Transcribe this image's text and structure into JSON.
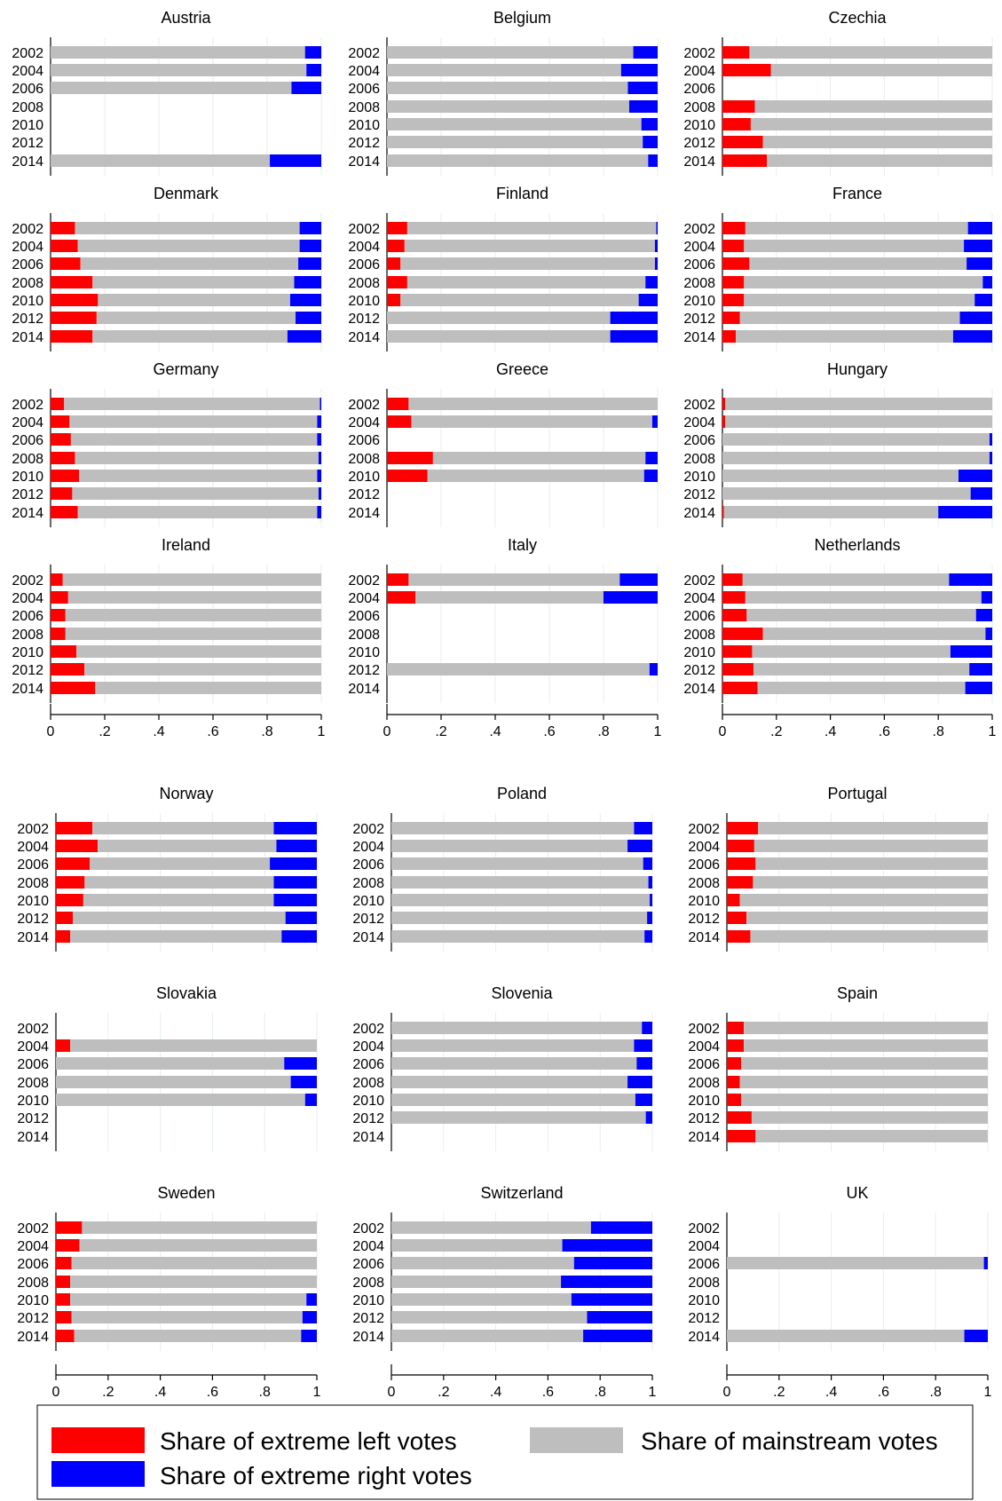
{
  "colors": {
    "left": "#ff0000",
    "mainstream": "#bebebe",
    "right": "#0000ff",
    "grid": "#e6eef2",
    "axis": "#000000"
  },
  "legend": {
    "left_label": "Share of extreme left votes",
    "mainstream_label": "Share of mainstream votes",
    "right_label": "Share of extreme right votes"
  },
  "chart_data": {
    "type": "bar",
    "orientation": "horizontal-stacked",
    "categories": [
      "2002",
      "2004",
      "2006",
      "2008",
      "2010",
      "2012",
      "2014"
    ],
    "x_ticks": [
      "0",
      ".2",
      ".4",
      ".6",
      ".8",
      "1"
    ],
    "xlim": [
      0,
      1
    ],
    "grid": true,
    "legend_position": "bottom",
    "series_names": [
      "Share of extreme left votes",
      "Share of mainstream votes",
      "Share of extreme right votes"
    ],
    "panels": [
      {
        "title": "Austria",
        "left": [
          0,
          0,
          0,
          null,
          null,
          null,
          0
        ],
        "right": [
          0.06,
          0.055,
          0.11,
          null,
          null,
          null,
          0.19
        ]
      },
      {
        "title": "Belgium",
        "left": [
          0,
          0,
          0,
          0,
          0,
          0,
          0
        ],
        "right": [
          0.09,
          0.135,
          0.11,
          0.105,
          0.06,
          0.055,
          0.035
        ]
      },
      {
        "title": "Czechia",
        "left": [
          0.1,
          0.18,
          null,
          0.12,
          0.105,
          0.15,
          0.165
        ],
        "right": [
          0,
          0,
          null,
          0,
          0,
          0,
          0
        ]
      },
      {
        "title": "Denmark",
        "left": [
          0.09,
          0.1,
          0.11,
          0.155,
          0.175,
          0.17,
          0.155
        ],
        "right": [
          0.08,
          0.08,
          0.085,
          0.1,
          0.115,
          0.095,
          0.125
        ]
      },
      {
        "title": "Finland",
        "left": [
          0.075,
          0.065,
          0.05,
          0.075,
          0.05,
          0,
          0
        ],
        "right": [
          0.005,
          0.01,
          0.01,
          0.045,
          0.07,
          0.175,
          0.175
        ]
      },
      {
        "title": "France",
        "left": [
          0.085,
          0.08,
          0.1,
          0.08,
          0.08,
          0.065,
          0.05
        ],
        "right": [
          0.09,
          0.105,
          0.095,
          0.035,
          0.065,
          0.12,
          0.145
        ]
      },
      {
        "title": "Germany",
        "left": [
          0.05,
          0.07,
          0.075,
          0.09,
          0.105,
          0.08,
          0.1
        ],
        "right": [
          0.005,
          0.015,
          0.015,
          0.01,
          0.015,
          0.01,
          0.015
        ]
      },
      {
        "title": "Greece",
        "left": [
          0.08,
          0.09,
          null,
          0.17,
          0.15,
          null,
          null
        ],
        "right": [
          0,
          0.02,
          null,
          0.045,
          0.05,
          null,
          null
        ]
      },
      {
        "title": "Hungary",
        "left": [
          0.01,
          0.01,
          0,
          0,
          0,
          0,
          0.005
        ],
        "right": [
          0,
          0,
          0.01,
          0.01,
          0.125,
          0.08,
          0.2
        ]
      },
      {
        "title": "Ireland",
        "left": [
          0.045,
          0.065,
          0.055,
          0.055,
          0.095,
          0.125,
          0.165
        ],
        "right": [
          0,
          0,
          0,
          0,
          0,
          0,
          0
        ]
      },
      {
        "title": "Italy",
        "left": [
          0.08,
          0.105,
          null,
          null,
          null,
          0,
          null
        ],
        "right": [
          0.14,
          0.2,
          null,
          null,
          null,
          0.03,
          null
        ]
      },
      {
        "title": "Netherlands",
        "left": [
          0.075,
          0.085,
          0.09,
          0.15,
          0.11,
          0.115,
          0.13
        ],
        "right": [
          0.16,
          0.04,
          0.06,
          0.025,
          0.155,
          0.085,
          0.1
        ]
      },
      {
        "title": "Norway",
        "left": [
          0.14,
          0.16,
          0.13,
          0.11,
          0.105,
          0.065,
          0.055
        ],
        "right": [
          0.165,
          0.155,
          0.18,
          0.165,
          0.165,
          0.12,
          0.135
        ]
      },
      {
        "title": "Poland",
        "left": [
          0,
          0,
          0,
          0,
          0,
          0,
          0
        ],
        "right": [
          0.07,
          0.095,
          0.035,
          0.015,
          0.01,
          0.02,
          0.03
        ]
      },
      {
        "title": "Portugal",
        "left": [
          0.12,
          0.105,
          0.11,
          0.1,
          0.05,
          0.075,
          0.09
        ],
        "right": [
          0,
          0,
          0,
          0,
          0,
          0,
          0
        ]
      },
      {
        "title": "Slovakia",
        "left": [
          null,
          0.055,
          0,
          0,
          0,
          null,
          null
        ],
        "right": [
          null,
          0,
          0.125,
          0.1,
          0.045,
          null,
          null
        ]
      },
      {
        "title": "Slovenia",
        "left": [
          0,
          0,
          0,
          0,
          0,
          0,
          null
        ],
        "right": [
          0.04,
          0.07,
          0.06,
          0.095,
          0.065,
          0.025,
          null
        ]
      },
      {
        "title": "Spain",
        "left": [
          0.065,
          0.065,
          0.055,
          0.05,
          0.055,
          0.095,
          0.11
        ],
        "right": [
          0,
          0,
          0,
          0,
          0,
          0,
          0
        ]
      },
      {
        "title": "Sweden",
        "left": [
          0.1,
          0.09,
          0.06,
          0.055,
          0.055,
          0.06,
          0.07
        ],
        "right": [
          0,
          0,
          0,
          0,
          0.04,
          0.055,
          0.06
        ]
      },
      {
        "title": "Switzerland",
        "left": [
          0,
          0,
          0,
          0,
          0,
          0,
          0
        ],
        "right": [
          0.235,
          0.345,
          0.3,
          0.35,
          0.31,
          0.25,
          0.265
        ]
      },
      {
        "title": "UK",
        "left": [
          null,
          null,
          0,
          null,
          null,
          null,
          0
        ],
        "right": [
          null,
          null,
          0.015,
          null,
          null,
          null,
          0.09
        ]
      }
    ]
  }
}
